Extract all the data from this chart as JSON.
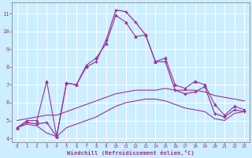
{
  "title": "",
  "xlabel": "Windchill (Refroidissement éolien,°C)",
  "ylabel": "",
  "background_color": "#cceeff",
  "grid_color": "#ffffff",
  "line_color": "#993399",
  "xlim": [
    -0.5,
    23.5
  ],
  "ylim": [
    3.8,
    11.6
  ],
  "xticks": [
    0,
    1,
    2,
    3,
    4,
    5,
    6,
    7,
    8,
    9,
    10,
    11,
    12,
    13,
    14,
    15,
    16,
    17,
    18,
    19,
    20,
    21,
    22,
    23
  ],
  "yticks": [
    4,
    5,
    6,
    7,
    8,
    9,
    10,
    11
  ],
  "series_main_x": [
    0,
    1,
    2,
    3,
    4,
    5,
    6,
    7,
    8,
    9,
    10,
    11,
    12,
    13,
    14,
    15,
    16,
    17,
    18,
    19,
    20,
    21,
    22,
    23
  ],
  "series_main_y": [
    4.6,
    4.9,
    4.8,
    4.9,
    4.1,
    7.1,
    7.0,
    8.0,
    8.3,
    9.5,
    11.2,
    11.1,
    10.5,
    9.8,
    8.3,
    8.3,
    6.7,
    6.5,
    6.6,
    6.9,
    5.4,
    5.2,
    5.6,
    5.5
  ],
  "series_low_x": [
    0,
    1,
    2,
    3,
    4,
    5,
    6,
    7,
    8,
    9,
    10,
    11,
    12,
    13,
    14,
    15,
    16,
    17,
    18,
    19,
    20,
    21,
    22,
    23
  ],
  "series_low_y": [
    4.6,
    4.8,
    4.7,
    4.3,
    4.1,
    4.6,
    4.8,
    5.0,
    5.2,
    5.5,
    5.8,
    6.0,
    6.1,
    6.2,
    6.2,
    6.1,
    5.9,
    5.7,
    5.6,
    5.5,
    5.1,
    5.0,
    5.4,
    5.5
  ],
  "series_hi_x": [
    0,
    1,
    2,
    3,
    4,
    5,
    6,
    7,
    8,
    9,
    10,
    11,
    12,
    13,
    14,
    15,
    16,
    17,
    18,
    19,
    20,
    21,
    22,
    23
  ],
  "series_hi_y": [
    4.6,
    5.0,
    5.0,
    7.2,
    4.1,
    7.1,
    7.0,
    8.1,
    8.5,
    9.3,
    10.9,
    10.5,
    9.7,
    9.8,
    8.3,
    8.5,
    7.0,
    6.8,
    7.2,
    7.0,
    5.9,
    5.3,
    5.8,
    5.6
  ],
  "series_trend_x": [
    0,
    1,
    2,
    3,
    4,
    5,
    6,
    7,
    8,
    9,
    10,
    11,
    12,
    13,
    14,
    15,
    16,
    17,
    18,
    19,
    20,
    21,
    22,
    23
  ],
  "series_trend_y": [
    5.0,
    5.1,
    5.2,
    5.3,
    5.3,
    5.5,
    5.7,
    5.9,
    6.1,
    6.3,
    6.5,
    6.6,
    6.7,
    6.7,
    6.7,
    6.8,
    6.7,
    6.7,
    6.7,
    6.6,
    6.4,
    6.3,
    6.2,
    6.1
  ]
}
